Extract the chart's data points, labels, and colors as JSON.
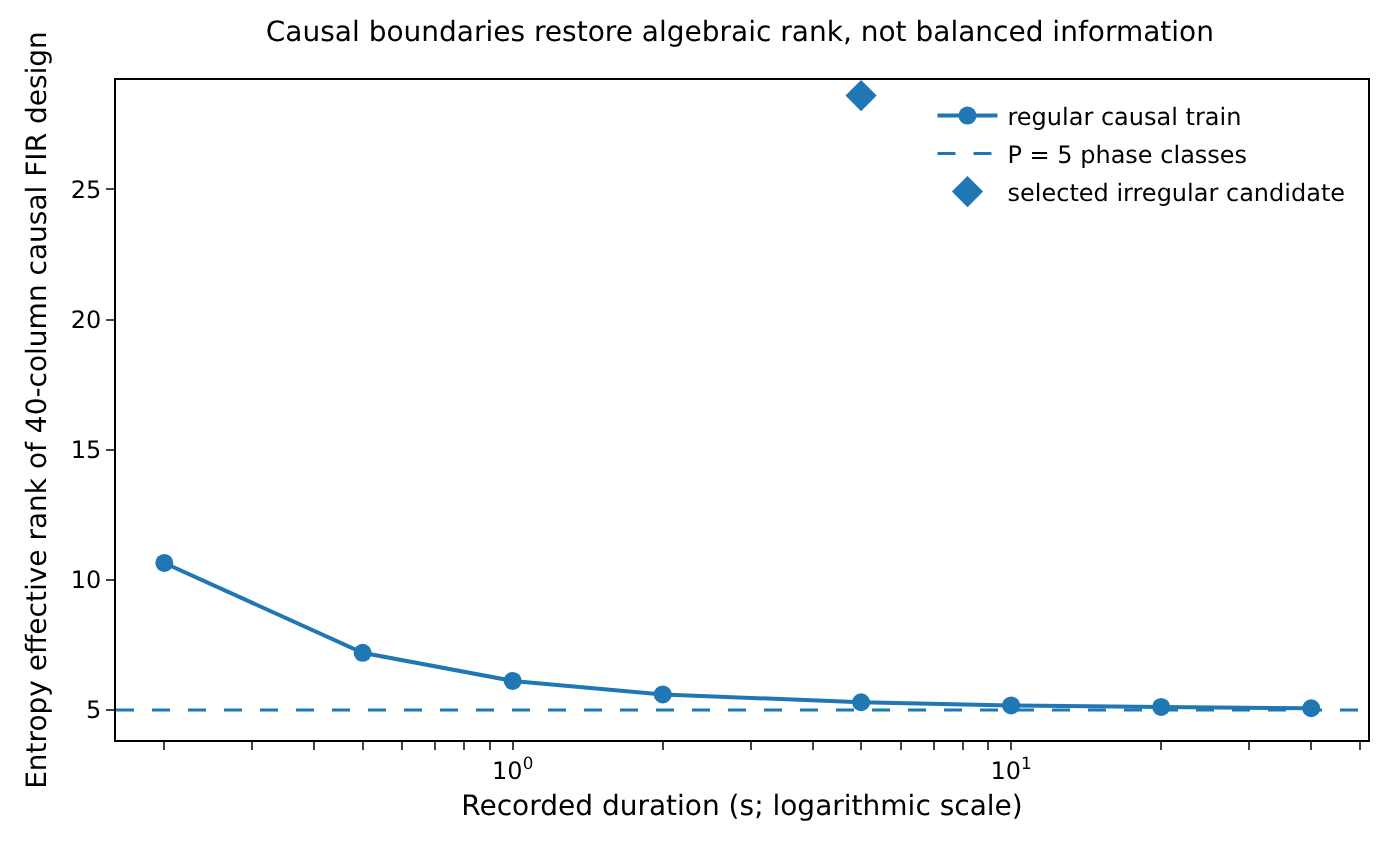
{
  "chart_data": {
    "type": "line",
    "title": "Causal boundaries restore algebraic rank, not balanced information",
    "xlabel": "Recorded duration (s; logarithmic scale)",
    "ylabel": "Entropy effective rank of 40-column causal FIR design",
    "log": "x",
    "grid": false,
    "legend": "top right",
    "marker": "circle",
    "line_style": "solid",
    "x": [
      0.2,
      0.5,
      1,
      2,
      5,
      10,
      20,
      40
    ],
    "series": [
      {
        "name": "regular causal train",
        "color": "#1f77b4",
        "values": [
          10.65,
          7.2,
          6.12,
          5.6,
          5.3,
          5.18,
          5.12,
          5.07
        ]
      },
      {
        "name": "selected irregular candidate",
        "type": "scatter",
        "marker": "diamond",
        "color": "#1f77b4",
        "x": [
          5
        ],
        "values": [
          28.6
        ]
      }
    ],
    "ref_lines": [
      {
        "axis": "y",
        "value": 5,
        "label": "P = 5 phase classes",
        "color": "#1f77b4",
        "line_style": "dashed"
      }
    ],
    "xlim": [
      0.16,
      52
    ],
    "ylim": [
      3.85,
      29.2
    ],
    "xticks": [
      {
        "value": 0.2,
        "label": null
      },
      {
        "value": 0.3,
        "label": null
      },
      {
        "value": 0.4,
        "label": null
      },
      {
        "value": 0.5,
        "label": null
      },
      {
        "value": 0.6,
        "label": null
      },
      {
        "value": 0.7,
        "label": null
      },
      {
        "value": 0.8,
        "label": null
      },
      {
        "value": 0.9,
        "label": null
      },
      {
        "value": 1,
        "label": "10$^{0}$"
      },
      {
        "value": 2,
        "label": null
      },
      {
        "value": 3,
        "label": null
      },
      {
        "value": 4,
        "label": null
      },
      {
        "value": 5,
        "label": null
      },
      {
        "value": 6,
        "label": null
      },
      {
        "value": 7,
        "label": null
      },
      {
        "value": 8,
        "label": null
      },
      {
        "value": 9,
        "label": null
      },
      {
        "value": 10,
        "label": "10$^{1}$"
      },
      {
        "value": 20,
        "label": null
      },
      {
        "value": 30,
        "label": null
      },
      {
        "value": 40,
        "label": null
      },
      {
        "value": 50,
        "label": null
      }
    ],
    "yticks": [
      5,
      10,
      15,
      20,
      25
    ]
  }
}
